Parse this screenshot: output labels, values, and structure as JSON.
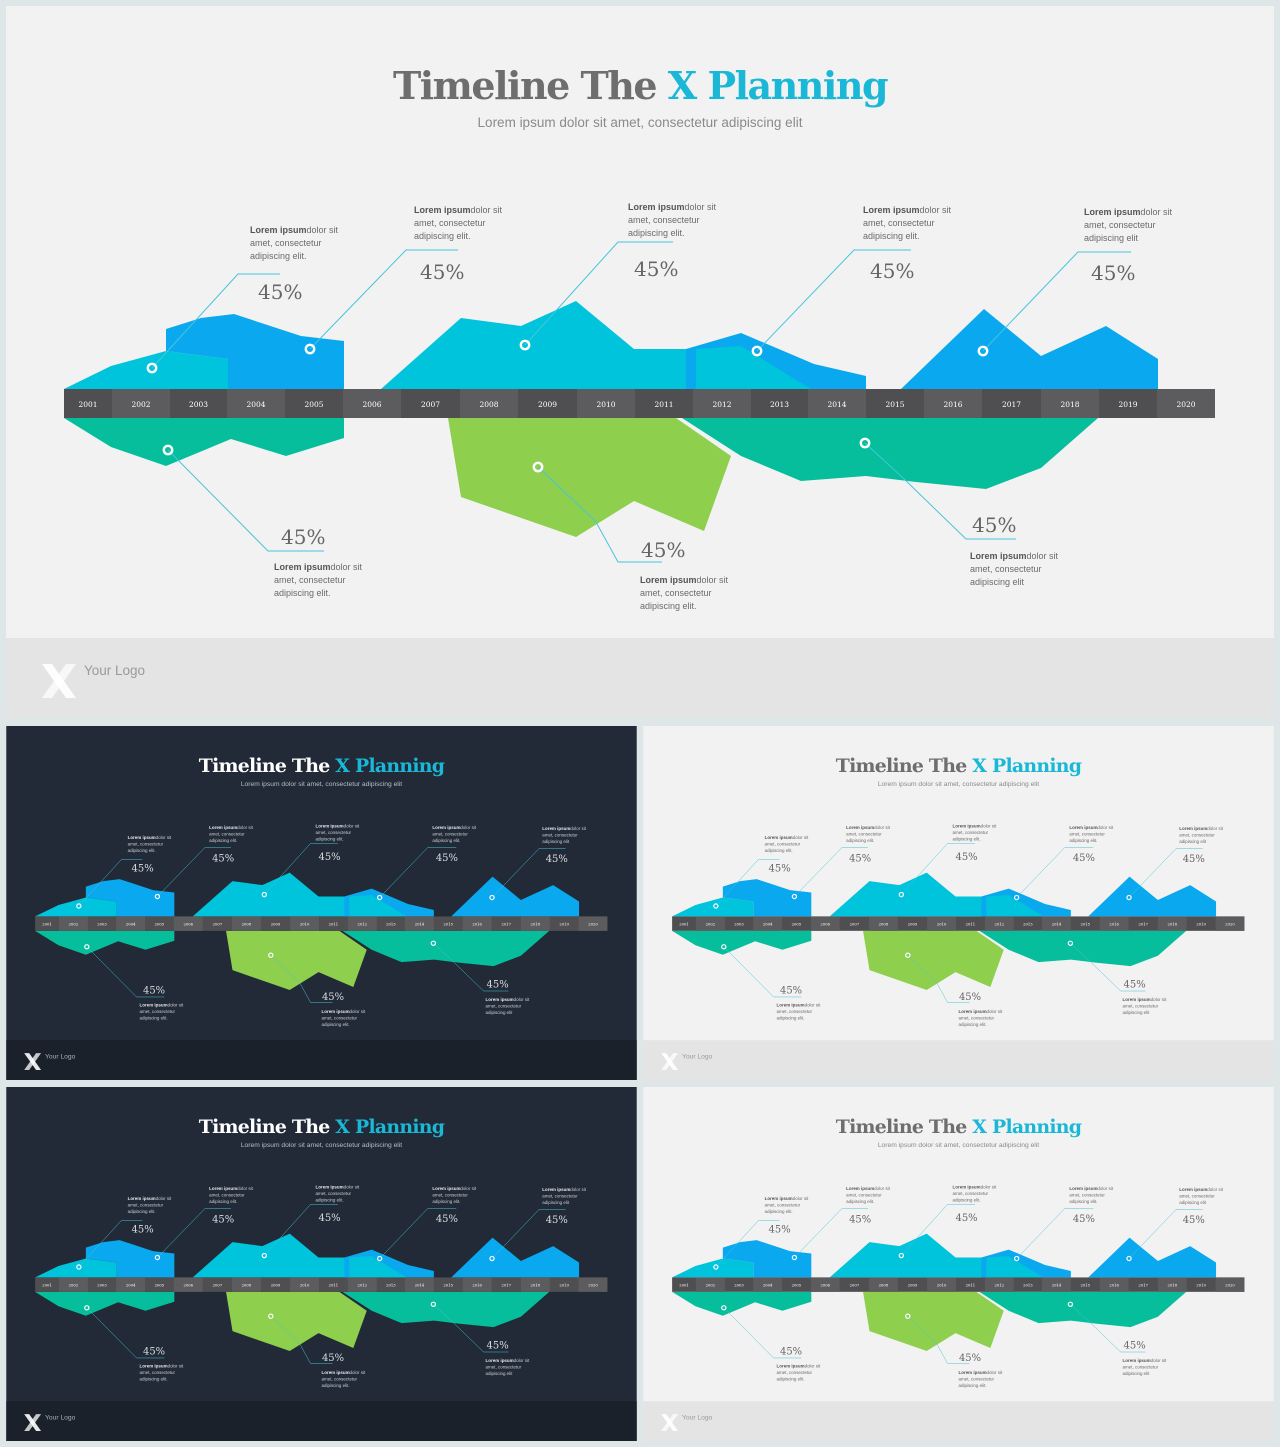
{
  "title": {
    "part1": "Timeline The ",
    "part2": "X Planning"
  },
  "subtitle": "Lorem ipsum dolor sit amet, consectetur adipiscing elit",
  "years": [
    "2001",
    "2002",
    "2003",
    "2004",
    "2005",
    "2006",
    "2007",
    "2008",
    "2009",
    "2010",
    "2011",
    "2012",
    "2013",
    "2014",
    "2015",
    "2016",
    "2017",
    "2018",
    "2019",
    "2020"
  ],
  "callouts": [
    {
      "value": "45%",
      "bold": "Lorem ipsum",
      "rest": "dolor sit",
      "line2": "amet, consectetur",
      "line3": "adipiscing elit."
    },
    {
      "value": "45%",
      "bold": "Lorem ipsum",
      "rest": "dolor sit",
      "line2": "amet, consectetur",
      "line3": "adipiscing elit."
    },
    {
      "value": "45%",
      "bold": "Lorem ipsum",
      "rest": "dolor sit",
      "line2": "amet, consectetur",
      "line3": "adipiscing elit."
    },
    {
      "value": "45%",
      "bold": "Lorem ipsum",
      "rest": "dolor sit",
      "line2": "amet, consectetur",
      "line3": "adipiscing elit."
    },
    {
      "value": "45%",
      "bold": "Lorem ipsum",
      "rest": "dolor sit",
      "line2": "amet, consectetur",
      "line3": "adipiscing elit"
    },
    {
      "value": "45%",
      "bold": "Lorem ipsum",
      "rest": "dolor sit",
      "line2": "amet, consectetur",
      "line3": "adipiscing elit."
    },
    {
      "value": "45%",
      "bold": "Lorem ipsum",
      "rest": "dolor sit",
      "line2": "amet, consectetur",
      "line3": "adipiscing elit."
    },
    {
      "value": "45%",
      "bold": "Lorem ipsum",
      "rest": "dolor sit",
      "line2": "amet, consectetur",
      "line3": "adipiscing elit"
    }
  ],
  "footer": {
    "logo_text": "Your Logo"
  },
  "colors": {
    "light_bg": "#f2f2f2",
    "light_footer": "#e4e4e4",
    "dark_bg": "#212a36",
    "dark_footer": "#1a212b",
    "title_gray": "#6e6e6e",
    "accent": "#1ab8d6",
    "bar": "#4f4f51",
    "bar_alt": "#5c5c5e",
    "blue": "#0aa8ee",
    "cyan": "#00c3dc",
    "teal": "#06be9b",
    "green": "#8ecf4e",
    "line": "#48c4db"
  },
  "slides": [
    {
      "id": "main",
      "theme": "light"
    },
    {
      "id": "thumb-dark-1",
      "theme": "dark"
    },
    {
      "id": "thumb-light-1",
      "theme": "light"
    },
    {
      "id": "thumb-dark-2",
      "theme": "dark"
    },
    {
      "id": "thumb-light-2",
      "theme": "light"
    }
  ]
}
